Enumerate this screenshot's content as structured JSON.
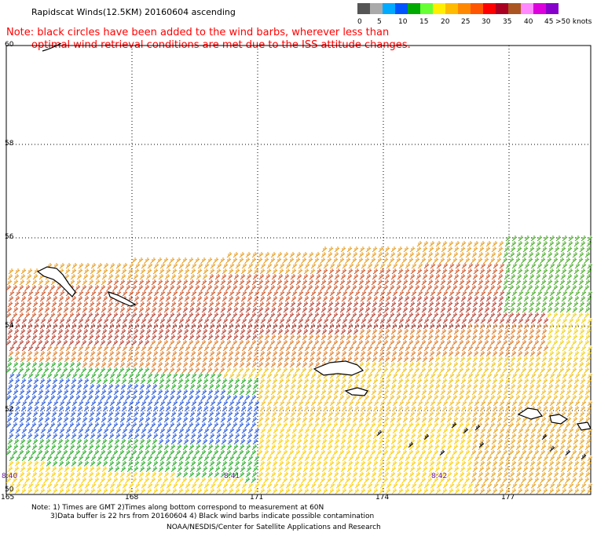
{
  "title": "Rapidscat Winds(12.5KM) 20160604 ascending",
  "note_line1": "Note: black circles have been added to the wind barbs, wherever less than",
  "note_line2": "optimal wind retrieval conditions are met due to the ISS attitude changes.",
  "legend": {
    "colors": [
      "#555555",
      "#aaaaaa",
      "#00aaff",
      "#0055ff",
      "#00aa00",
      "#66ff33",
      "#ffee00",
      "#ffbb00",
      "#ff8800",
      "#ff5500",
      "#ff0000",
      "#aa0022",
      "#aa5522",
      "#ff88ff",
      "#dd00dd",
      "#8800cc"
    ],
    "labels": [
      "0",
      "5",
      "10",
      "15",
      "20",
      "25",
      "30",
      "35",
      "40",
      "45",
      ">50 knots"
    ]
  },
  "lat_labels": [
    "60",
    "58",
    "56",
    "54",
    "52",
    "50"
  ],
  "lon_labels": [
    "165",
    "168",
    "171",
    "174",
    "177"
  ],
  "time_labels": [
    "8:40",
    "8:41",
    "8:42"
  ],
  "footer": {
    "line1": "Note: 1) Times are GMT 2)Times along bottom correspond to measurement at 60N",
    "line2": "3)Data buffer is 22 hrs from 20160604 4) Black wind barbs indicate possible contamination",
    "line3": "NOAA/NESDIS/Center for Satellite Applications and Research"
  }
}
